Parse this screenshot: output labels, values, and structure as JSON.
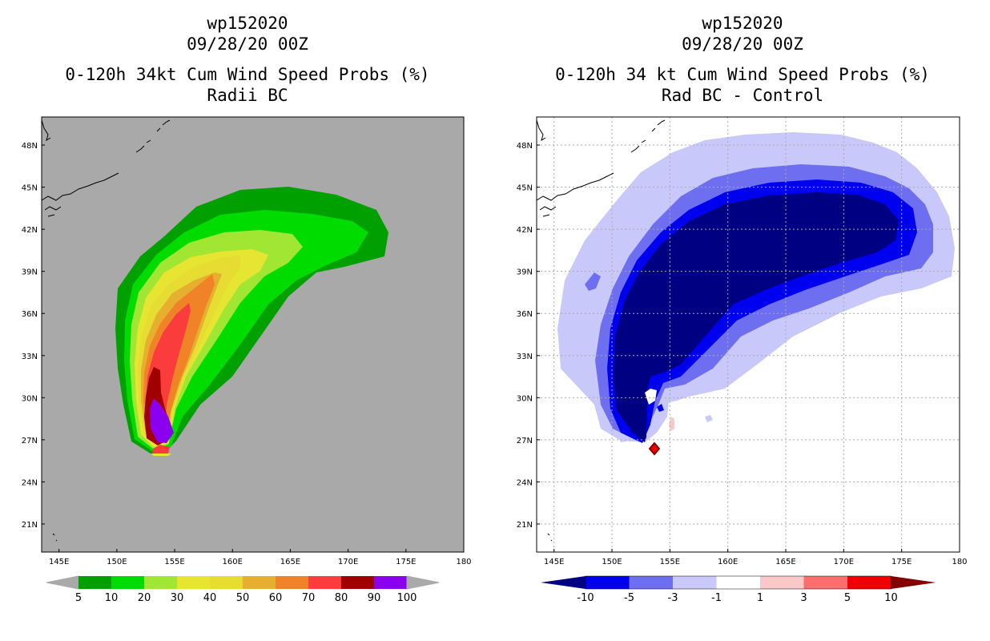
{
  "left_title": {
    "line1": "wp152020",
    "line2": "09/28/20 00Z",
    "line3": "0-120h 34kt Cum Wind Speed Probs (%)",
    "line4": "Radii BC"
  },
  "right_title": {
    "line1": "wp152020",
    "line2": "09/28/20 00Z",
    "line3": "0-120h 34 kt Cum Wind Speed Probs (%)",
    "line4": "Rad BC - Control"
  },
  "chart_data": [
    {
      "type": "heatmap",
      "title": "0-120h 34kt Cum Wind Speed Probs (%) - Radii BC",
      "x_ticks": [
        "145E",
        "150E",
        "155E",
        "160E",
        "165E",
        "170E",
        "175E",
        "180"
      ],
      "y_ticks": [
        "21N",
        "24N",
        "27N",
        "30N",
        "33N",
        "36N",
        "39N",
        "42N",
        "45N",
        "48N"
      ],
      "xlim": [
        143.5,
        180
      ],
      "ylim": [
        19,
        50
      ],
      "grid": false,
      "colorbar": {
        "labels": [
          "5",
          "10",
          "20",
          "30",
          "40",
          "50",
          "60",
          "70",
          "80",
          "90",
          "100"
        ],
        "colors": [
          "#00a000",
          "#00dc00",
          "#a0e632",
          "#e6e632",
          "#e6dc32",
          "#e6af2d",
          "#f08228",
          "#fa3c3c",
          "#a00000",
          "#8c00f0"
        ]
      },
      "contour_levels_pct": [
        5,
        10,
        20,
        30,
        40,
        50,
        60,
        70,
        80,
        90
      ]
    },
    {
      "type": "heatmap",
      "title": "0-120h 34 kt Cum Wind Speed Probs (%) - Rad BC - Control",
      "x_ticks": [
        "145E",
        "150E",
        "155E",
        "160E",
        "165E",
        "170E",
        "175E",
        "180"
      ],
      "y_ticks": [
        "21N",
        "24N",
        "27N",
        "30N",
        "33N",
        "36N",
        "39N",
        "42N",
        "45N",
        "48N"
      ],
      "xlim": [
        143.5,
        180
      ],
      "ylim": [
        19,
        50
      ],
      "grid": true,
      "colorbar": {
        "labels": [
          "-10",
          "-5",
          "-3",
          "-1",
          "1",
          "3",
          "5",
          "10"
        ],
        "colors": [
          "#000082",
          "#0000f0",
          "#6e6ef0",
          "#c8c8fa",
          "#ffffff",
          "#fac8c8",
          "#fa6e6e",
          "#f00000",
          "#820000"
        ]
      },
      "contour_levels_pct": [
        -10,
        -5,
        -3,
        -1,
        1,
        3,
        5,
        10
      ]
    }
  ]
}
